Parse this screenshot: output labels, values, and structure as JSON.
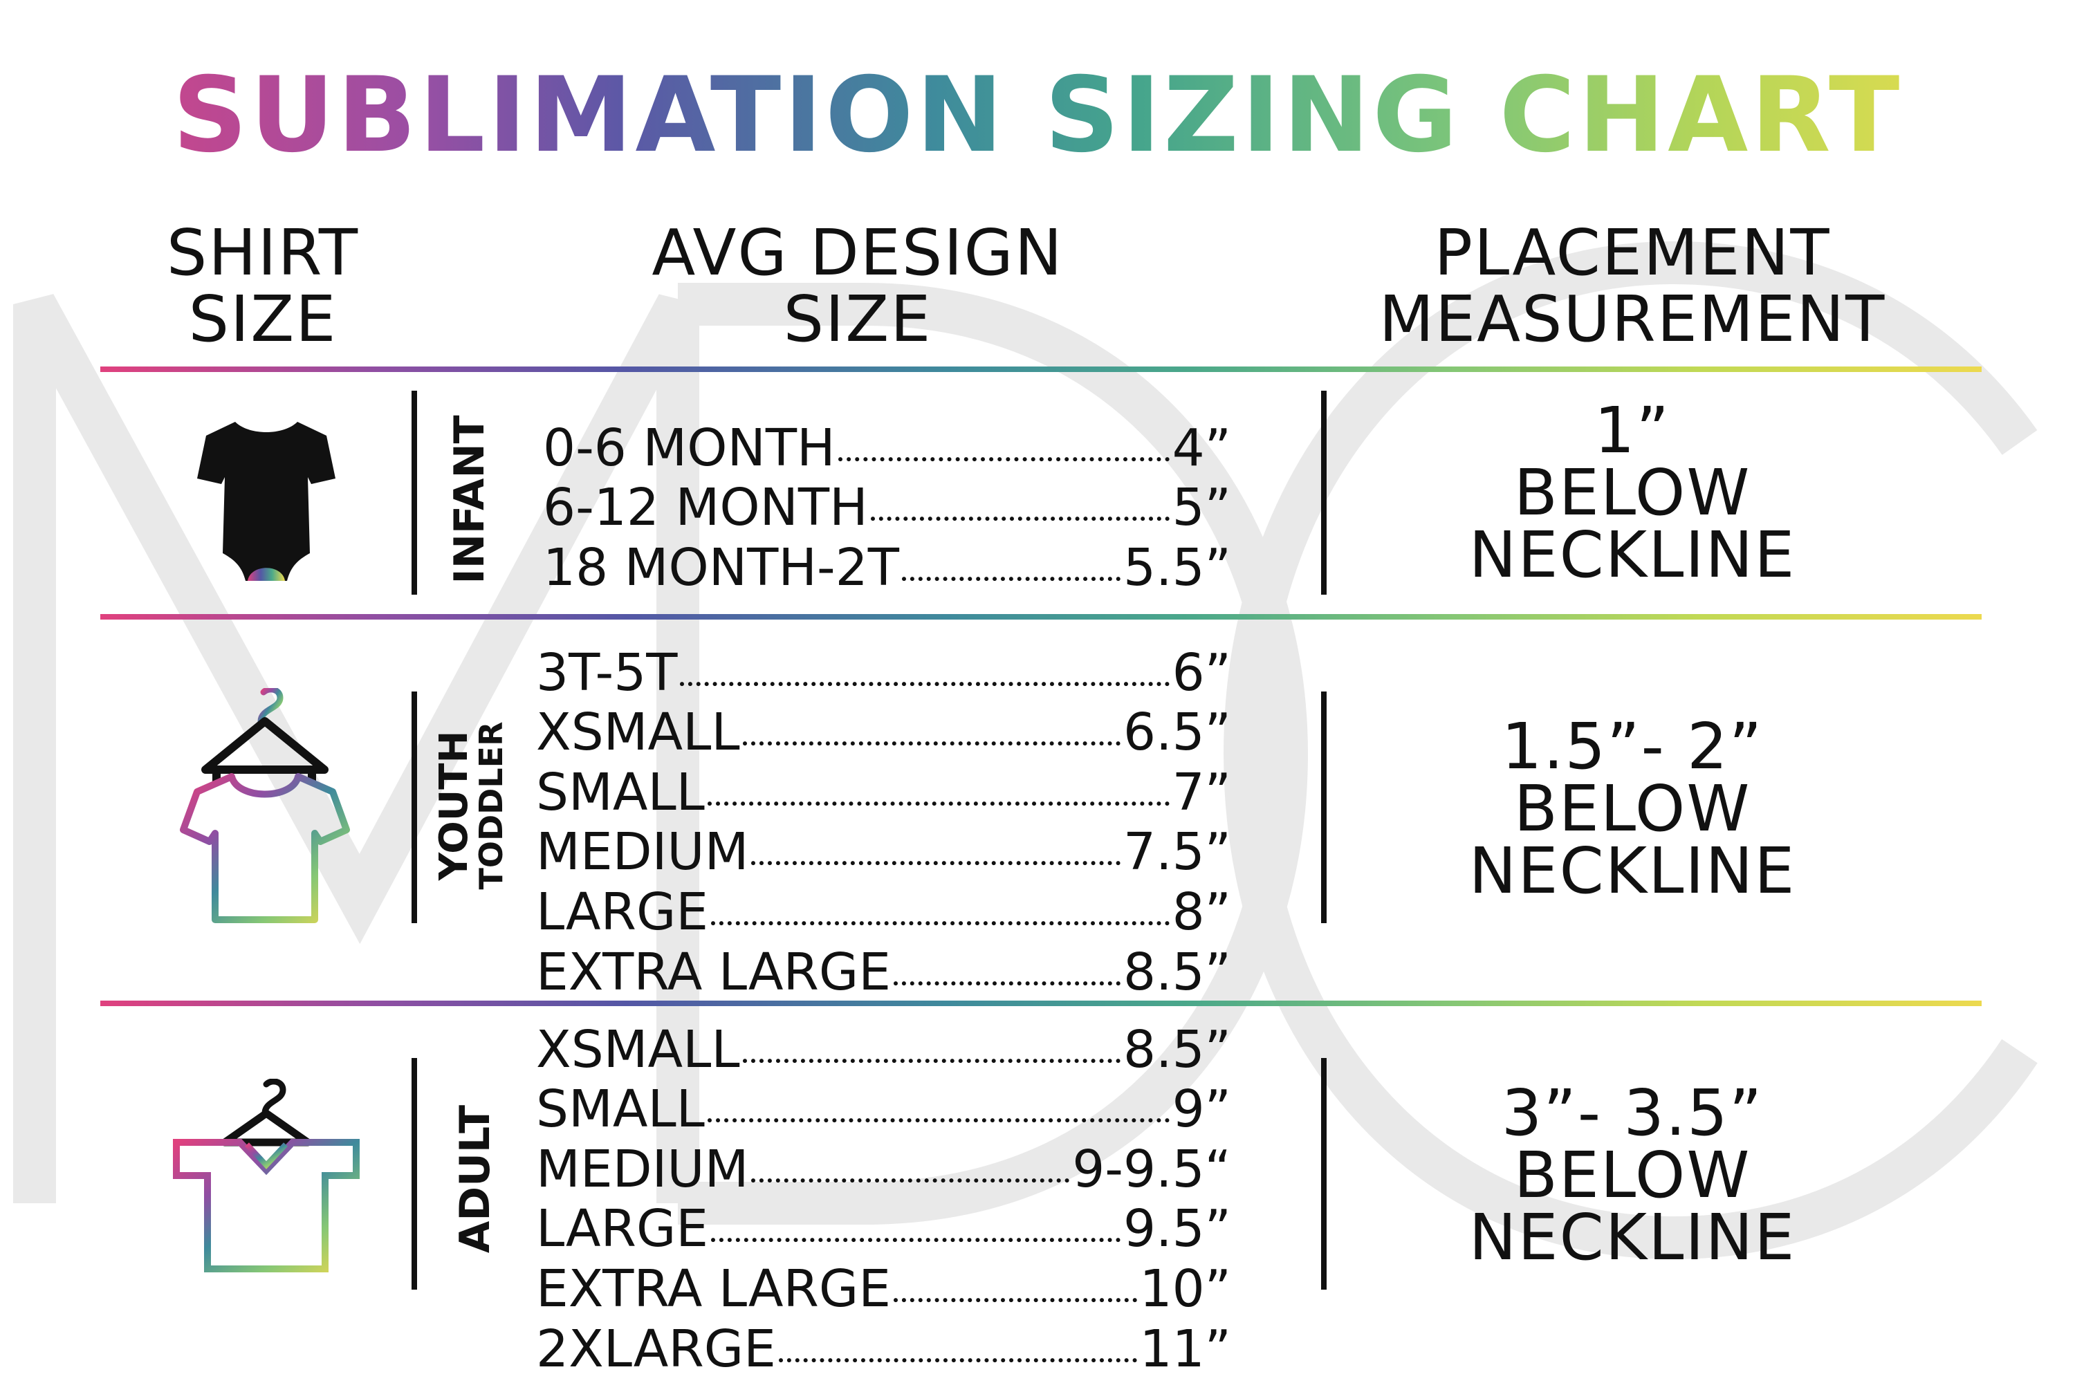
{
  "title": "SUBLIMATION SIZING CHART",
  "headers": {
    "shirt_size": [
      "SHIRT",
      "SIZE"
    ],
    "avg_design_size": [
      "AVG DESIGN",
      "SIZE"
    ],
    "placement": [
      "PLACEMENT",
      "MEASUREMENT"
    ]
  },
  "watermark_text": "MDC",
  "colors": {
    "gradient": [
      "#e0417e",
      "#8e4fa3",
      "#5457a5",
      "#3f8a9c",
      "#4ba88a",
      "#86c775",
      "#c1d955",
      "#ecd94f"
    ],
    "text": "#111111",
    "watermark": "#e9e9e9"
  },
  "groups": [
    {
      "id": "infant",
      "icon": "onesie-icon",
      "category": [
        "INFANT"
      ],
      "rows": [
        {
          "label": "0-6 MONTH",
          "value": "4”"
        },
        {
          "label": "6-12 MONTH",
          "value": "5”"
        },
        {
          "label": "18 MONTH-2T",
          "value": "5.5”"
        }
      ],
      "placement": [
        "1”",
        "BELOW",
        "NECKLINE"
      ]
    },
    {
      "id": "youth",
      "icon": "youth-shirt-hanger-icon",
      "category": [
        "YOUTH",
        "TODDLER"
      ],
      "rows": [
        {
          "label": "3T-5T",
          "value": "6”"
        },
        {
          "label": "XSMALL",
          "value": "6.5”"
        },
        {
          "label": "SMALL",
          "value": "7”"
        },
        {
          "label": "MEDIUM",
          "value": "7.5”"
        },
        {
          "label": "LARGE",
          "value": "8”"
        },
        {
          "label": "EXTRA LARGE",
          "value": "8.5”"
        }
      ],
      "placement": [
        "1.5”- 2”",
        "BELOW",
        "NECKLINE"
      ]
    },
    {
      "id": "adult",
      "icon": "adult-shirt-hanger-icon",
      "category": [
        "ADULT"
      ],
      "rows": [
        {
          "label": "XSMALL",
          "value": "8.5”"
        },
        {
          "label": "SMALL",
          "value": "9”"
        },
        {
          "label": "MEDIUM",
          "value": "9-9.5“"
        },
        {
          "label": "LARGE",
          "value": "9.5”"
        },
        {
          "label": "EXTRA LARGE",
          "value": "10”"
        },
        {
          "label": "2XLARGE",
          "value": "11”"
        }
      ],
      "placement": [
        "3”- 3.5”",
        "BELOW",
        "NECKLINE"
      ]
    }
  ]
}
